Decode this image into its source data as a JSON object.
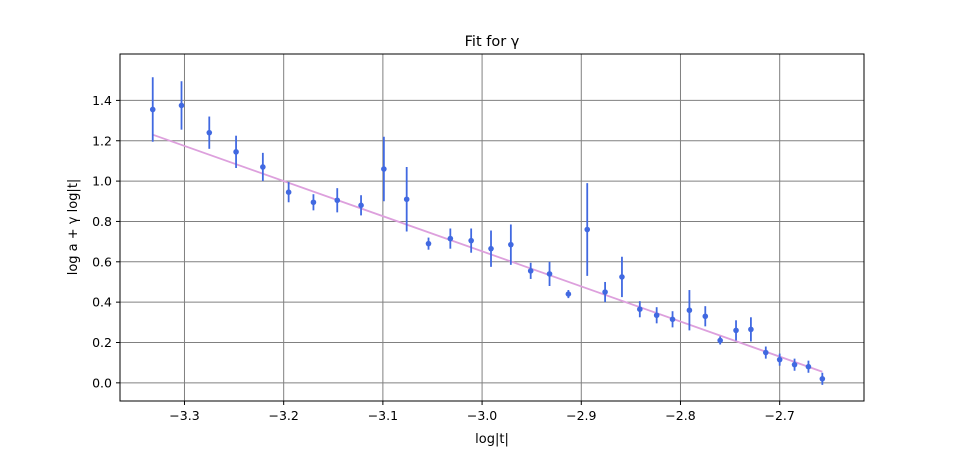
{
  "chart_data": {
    "type": "scatter",
    "title": "Fit for γ",
    "xlabel": "log|t|",
    "ylabel": "log a + γ log|t|",
    "xlim": [
      -3.365,
      -2.615
    ],
    "ylim": [
      -0.09,
      1.63
    ],
    "xticks": [
      {
        "value": -3.3,
        "label": "−3.3"
      },
      {
        "value": -3.2,
        "label": "−3.2"
      },
      {
        "value": -3.1,
        "label": "−3.1"
      },
      {
        "value": -3.0,
        "label": "−3.0"
      },
      {
        "value": -2.9,
        "label": "−2.9"
      },
      {
        "value": -2.8,
        "label": "−2.8"
      },
      {
        "value": -2.7,
        "label": "−2.7"
      }
    ],
    "yticks": [
      {
        "value": 0.0,
        "label": "0.0"
      },
      {
        "value": 0.2,
        "label": "0.2"
      },
      {
        "value": 0.4,
        "label": "0.4"
      },
      {
        "value": 0.6,
        "label": "0.6"
      },
      {
        "value": 0.8,
        "label": "0.8"
      },
      {
        "value": 1.0,
        "label": "1.0"
      },
      {
        "value": 1.2,
        "label": "1.2"
      },
      {
        "value": 1.4,
        "label": "1.4"
      }
    ],
    "grid": true,
    "series": [
      {
        "kind": "errorbar",
        "color": "#4169e1",
        "points": [
          {
            "x": -3.332,
            "y": 1.355,
            "err": 0.16
          },
          {
            "x": -3.303,
            "y": 1.375,
            "err": 0.12
          },
          {
            "x": -3.275,
            "y": 1.24,
            "err": 0.08
          },
          {
            "x": -3.248,
            "y": 1.145,
            "err": 0.08
          },
          {
            "x": -3.221,
            "y": 1.07,
            "err": 0.07
          },
          {
            "x": -3.195,
            "y": 0.945,
            "err": 0.05
          },
          {
            "x": -3.17,
            "y": 0.895,
            "err": 0.04
          },
          {
            "x": -3.146,
            "y": 0.905,
            "err": 0.06
          },
          {
            "x": -3.122,
            "y": 0.88,
            "err": 0.05
          },
          {
            "x": -3.099,
            "y": 1.06,
            "err": 0.16
          },
          {
            "x": -3.076,
            "y": 0.91,
            "err": 0.16
          },
          {
            "x": -3.054,
            "y": 0.69,
            "err": 0.03
          },
          {
            "x": -3.032,
            "y": 0.715,
            "err": 0.05
          },
          {
            "x": -3.011,
            "y": 0.705,
            "err": 0.06
          },
          {
            "x": -2.991,
            "y": 0.665,
            "err": 0.09
          },
          {
            "x": -2.971,
            "y": 0.685,
            "err": 0.1
          },
          {
            "x": -2.951,
            "y": 0.555,
            "err": 0.04
          },
          {
            "x": -2.932,
            "y": 0.54,
            "err": 0.06
          },
          {
            "x": -2.913,
            "y": 0.44,
            "err": 0.02
          },
          {
            "x": -2.894,
            "y": 0.76,
            "err": 0.23
          },
          {
            "x": -2.876,
            "y": 0.45,
            "err": 0.05
          },
          {
            "x": -2.859,
            "y": 0.525,
            "err": 0.1
          },
          {
            "x": -2.841,
            "y": 0.365,
            "err": 0.04
          },
          {
            "x": -2.824,
            "y": 0.335,
            "err": 0.04
          },
          {
            "x": -2.808,
            "y": 0.315,
            "err": 0.04
          },
          {
            "x": -2.791,
            "y": 0.36,
            "err": 0.1
          },
          {
            "x": -2.775,
            "y": 0.33,
            "err": 0.05
          },
          {
            "x": -2.76,
            "y": 0.21,
            "err": 0.02
          },
          {
            "x": -2.744,
            "y": 0.26,
            "err": 0.05
          },
          {
            "x": -2.729,
            "y": 0.265,
            "err": 0.06
          },
          {
            "x": -2.714,
            "y": 0.15,
            "err": 0.03
          },
          {
            "x": -2.7,
            "y": 0.115,
            "err": 0.03
          },
          {
            "x": -2.685,
            "y": 0.09,
            "err": 0.03
          },
          {
            "x": -2.671,
            "y": 0.08,
            "err": 0.03
          },
          {
            "x": -2.657,
            "y": 0.02,
            "err": 0.03
          }
        ]
      },
      {
        "kind": "line",
        "color": "#dda0dd",
        "x": [
          -3.332,
          -2.657
        ],
        "y": [
          1.23,
          0.055
        ]
      }
    ]
  }
}
